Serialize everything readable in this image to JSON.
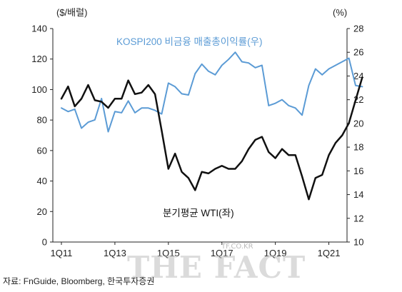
{
  "chart_data": {
    "type": "line",
    "left_unit_label": "($/배럴)",
    "right_unit_label": "(%)",
    "x_tick_labels": [
      "1Q11",
      "1Q13",
      "1Q15",
      "1Q17",
      "1Q19",
      "1Q21"
    ],
    "y_left_ticks": [
      "0",
      "20",
      "40",
      "60",
      "80",
      "100",
      "120",
      "140"
    ],
    "y_right_ticks": [
      "10",
      "12",
      "14",
      "16",
      "18",
      "20",
      "22",
      "24",
      "26",
      "28"
    ],
    "ylim_left": [
      0,
      140
    ],
    "ylim_right": [
      10,
      28
    ],
    "x_quarter_range": [
      0,
      44
    ],
    "series": [
      {
        "name": "KOSPI200 비금융 매출총이익률(우)",
        "axis": "right",
        "color": "#5b9bd5",
        "values": [
          21.3,
          21.0,
          21.2,
          19.6,
          20.1,
          20.3,
          22.1,
          19.3,
          21.0,
          20.9,
          21.9,
          20.9,
          21.3,
          21.3,
          21.1,
          20.8,
          23.4,
          23.1,
          22.5,
          22.4,
          24.2,
          25.0,
          24.4,
          24.1,
          24.9,
          25.4,
          26.0,
          25.2,
          25.1,
          24.7,
          24.9,
          21.5,
          21.7,
          22.0,
          21.5,
          21.3,
          20.7,
          23.2,
          24.6,
          24.1,
          24.6,
          24.9,
          25.2,
          25.5,
          23.2,
          23.1
        ],
        "color_tag": "blue"
      },
      {
        "name": "분기평균 WTI(좌)",
        "axis": "left",
        "color": "#111111",
        "values": [
          94,
          102,
          89,
          94,
          103,
          93,
          92,
          88,
          94,
          94,
          106,
          97,
          98,
          103,
          97,
          73,
          48,
          58,
          46,
          42,
          34,
          46,
          45,
          48,
          50,
          48,
          48,
          53,
          61,
          67,
          69,
          59,
          55,
          61,
          57,
          57,
          43,
          28,
          42,
          44,
          57,
          65,
          70,
          78,
          93,
          108
        ],
        "color_tag": "black"
      }
    ],
    "annotations": {
      "blue_label": "KOSPI200 비금융 매출총이익률(우)",
      "black_label": "분기평균 WTI(좌)"
    }
  },
  "source_text": "자료: FnGuide, Bloomberg, 한국투자증권",
  "watermark": {
    "main": "THE FACT",
    "small": "TF.CO.KR"
  }
}
